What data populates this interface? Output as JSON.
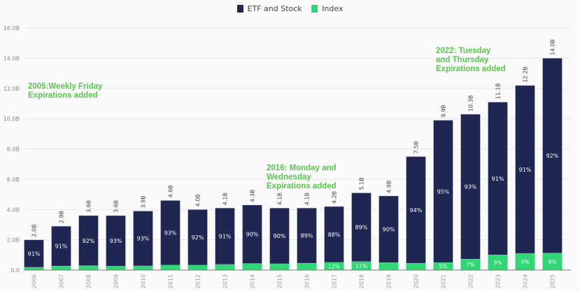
{
  "chart_data": {
    "type": "bar",
    "stacked": true,
    "title": "",
    "xlabel": "",
    "ylabel": "",
    "ylim": [
      0,
      16
    ],
    "y_unit_suffix": "B",
    "yticks": [
      0,
      2,
      4,
      6,
      8,
      10,
      12,
      14,
      16
    ],
    "ytick_labels": [
      "0.0",
      "2.0B",
      "4.0B",
      "6.0B",
      "8.0B",
      "10.0B",
      "12.0B",
      "14.0B",
      "16.0B"
    ],
    "grid": true,
    "legend_position": "top-center",
    "categories": [
      "2006",
      "2007",
      "2008",
      "2009",
      "2010",
      "2011",
      "2012",
      "2013",
      "2014",
      "2015",
      "2016",
      "2017",
      "2018",
      "2019",
      "2020",
      "2021",
      "2022",
      "2023",
      "2024",
      "2025"
    ],
    "totals": [
      2.0,
      2.9,
      3.6,
      3.6,
      3.9,
      4.6,
      4.0,
      4.1,
      4.3,
      4.1,
      4.1,
      4.2,
      5.1,
      4.9,
      7.5,
      9.9,
      10.3,
      11.1,
      12.2,
      14.0
    ],
    "total_labels": [
      "2.0B",
      "2.9B",
      "3.6B",
      "3.6B",
      "3.9B",
      "4.6B",
      "4.0B",
      "4.1B",
      "4.3B",
      "4.1B",
      "4.1B",
      "4.2B",
      "5.1B",
      "4.9B",
      "7.5B",
      "9.9B",
      "10.3B",
      "11.1B",
      "12.2B",
      "14.0B"
    ],
    "series": [
      {
        "name": "ETF and Stock",
        "color": "#1e2651",
        "share_pct": [
          91,
          91,
          92,
          93,
          93,
          93,
          92,
          91,
          90,
          90,
          89,
          88,
          89,
          90,
          94,
          95,
          93,
          91,
          91,
          92
        ],
        "labels": [
          "91%",
          "91%",
          "92%",
          "93%",
          "93%",
          "93%",
          "92%",
          "91%",
          "90%",
          "90%",
          "89%",
          "88%",
          "89%",
          "90%",
          "94%",
          "95%",
          "93%",
          "91%",
          "91%",
          "92%"
        ]
      },
      {
        "name": "Index",
        "color": "#2fd874",
        "share_pct": [
          9,
          9,
          8,
          7,
          7,
          7,
          8,
          9,
          10,
          10,
          11,
          12,
          11,
          10,
          6,
          5,
          7,
          9,
          9,
          8
        ],
        "labels": [
          "",
          "",
          "",
          "",
          "",
          "",
          "",
          "",
          "",
          "",
          "",
          "12%",
          "11%",
          "",
          "",
          "5%",
          "7%",
          "9%",
          "9%",
          "8%"
        ]
      }
    ],
    "annotations": [
      {
        "text_lines": [
          "2005:Weekly Friday",
          "Expirations added"
        ],
        "color": "#5cc451"
      },
      {
        "text_lines": [
          "2016: Monday and",
          "Wednesday",
          "Expirations added"
        ],
        "color": "#5cc451"
      },
      {
        "text_lines": [
          "2022: Tuesday",
          "and Thursday",
          "Expirations added"
        ],
        "color": "#5cc451"
      }
    ]
  }
}
